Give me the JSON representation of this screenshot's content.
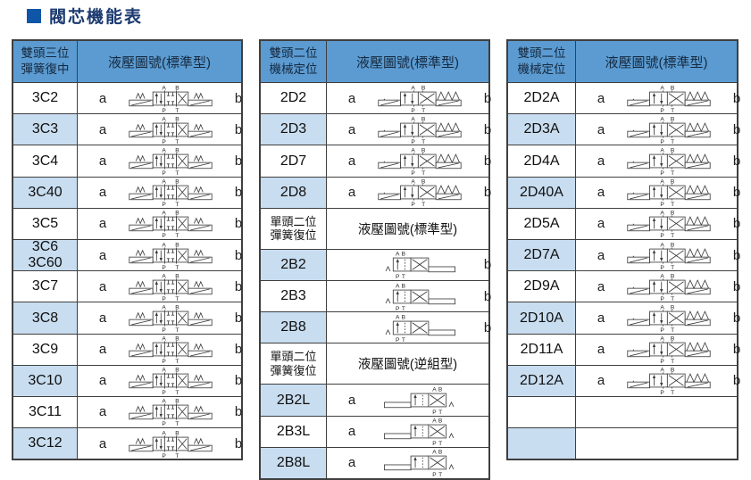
{
  "title": "閥芯機能表",
  "title_bullet_icon": "blue-square-bullet",
  "colors": {
    "header_bg": "#5B9BD1",
    "header_text": "#16293f",
    "row_shade": "#C8DDF0",
    "border": "#3f3f3f",
    "title_text": "#1b3a70",
    "title_bullet": "#0f55a8",
    "symbol_stroke": "#3a3a3a"
  },
  "tables": [
    {
      "sections": [
        {
          "style": "primary",
          "header": {
            "left": "雙頭三位\n彈簧復中",
            "right": "液壓圖號(標準型)"
          },
          "rows": [
            {
              "code": "3C2",
              "a": "a",
              "b": "b",
              "shaded": false,
              "sym": "3pos-spring-center"
            },
            {
              "code": "3C3",
              "a": "a",
              "b": "b",
              "shaded": true,
              "sym": "3pos-spring-center"
            },
            {
              "code": "3C4",
              "a": "a",
              "b": "b",
              "shaded": false,
              "sym": "3pos-spring-center"
            },
            {
              "code": "3C40",
              "a": "a",
              "b": "b",
              "shaded": true,
              "sym": "3pos-spring-center"
            },
            {
              "code": "3C5",
              "a": "a",
              "b": "b",
              "shaded": false,
              "sym": "3pos-spring-center"
            },
            {
              "code": "3C6\n3C60",
              "a": "a",
              "b": "b",
              "shaded": true,
              "sym": "3pos-spring-center"
            },
            {
              "code": "3C7",
              "a": "a",
              "b": "b",
              "shaded": false,
              "sym": "3pos-spring-center"
            },
            {
              "code": "3C8",
              "a": "a",
              "b": "b",
              "shaded": true,
              "sym": "3pos-spring-center"
            },
            {
              "code": "3C9",
              "a": "a",
              "b": "b",
              "shaded": false,
              "sym": "3pos-spring-center"
            },
            {
              "code": "3C10",
              "a": "a",
              "b": "b",
              "shaded": true,
              "sym": "3pos-spring-center"
            },
            {
              "code": "3C11",
              "a": "a",
              "b": "b",
              "shaded": false,
              "sym": "3pos-spring-center"
            },
            {
              "code": "3C12",
              "a": "a",
              "b": "b",
              "shaded": true,
              "sym": "3pos-spring-center"
            }
          ]
        }
      ]
    },
    {
      "sections": [
        {
          "style": "primary",
          "header": {
            "left": "雙頭二位\n機械定位",
            "right": "液壓圖號(標準型)"
          },
          "rows": [
            {
              "code": "2D2",
              "a": "a",
              "b": "b",
              "shaded": false,
              "sym": "2pos-detent"
            },
            {
              "code": "2D3",
              "a": "a",
              "b": "b",
              "shaded": true,
              "sym": "2pos-detent"
            },
            {
              "code": "2D7",
              "a": "a",
              "b": "b",
              "shaded": false,
              "sym": "2pos-detent"
            },
            {
              "code": "2D8",
              "a": "a",
              "b": "b",
              "shaded": true,
              "sym": "2pos-detent"
            }
          ]
        },
        {
          "style": "sub",
          "header": {
            "left": "單頭二位\n彈簧復位",
            "right": "液壓圖號(標準型)"
          },
          "rows": [
            {
              "code": "2B2",
              "a": "",
              "b": "b",
              "shaded": true,
              "sym": "2pos-spring-return"
            },
            {
              "code": "2B3",
              "a": "",
              "b": "b",
              "shaded": false,
              "sym": "2pos-spring-return"
            },
            {
              "code": "2B8",
              "a": "",
              "b": "b",
              "shaded": true,
              "sym": "2pos-spring-return"
            }
          ]
        },
        {
          "style": "sub",
          "header": {
            "left": "單頭二位\n彈簧復位",
            "right": "液壓圖號(逆組型)"
          },
          "rows": [
            {
              "code": "2B2L",
              "a": "a",
              "b": "",
              "shaded": true,
              "sym": "2pos-spring-return-L"
            },
            {
              "code": "2B3L",
              "a": "a",
              "b": "",
              "shaded": false,
              "sym": "2pos-spring-return-L"
            },
            {
              "code": "2B8L",
              "a": "a",
              "b": "",
              "shaded": true,
              "sym": "2pos-spring-return-L"
            }
          ]
        }
      ]
    },
    {
      "sections": [
        {
          "style": "primary",
          "header": {
            "left": "雙頭二位\n機械定位",
            "right": "液壓圖號(標準型)"
          },
          "rows": [
            {
              "code": "2D2A",
              "a": "a",
              "b": "b",
              "shaded": false,
              "sym": "2pos-detent"
            },
            {
              "code": "2D3A",
              "a": "a",
              "b": "b",
              "shaded": true,
              "sym": "2pos-detent"
            },
            {
              "code": "2D4A",
              "a": "a",
              "b": "b",
              "shaded": false,
              "sym": "2pos-detent"
            },
            {
              "code": "2D40A",
              "a": "a",
              "b": "b",
              "shaded": true,
              "sym": "2pos-detent"
            },
            {
              "code": "2D5A",
              "a": "a",
              "b": "b",
              "shaded": false,
              "sym": "2pos-detent"
            },
            {
              "code": "2D7A",
              "a": "a",
              "b": "b",
              "shaded": true,
              "sym": "2pos-detent"
            },
            {
              "code": "2D9A",
              "a": "a",
              "b": "b",
              "shaded": false,
              "sym": "2pos-detent"
            },
            {
              "code": "2D10A",
              "a": "a",
              "b": "b",
              "shaded": true,
              "sym": "2pos-detent"
            },
            {
              "code": "2D11A",
              "a": "a",
              "b": "b",
              "shaded": false,
              "sym": "2pos-detent"
            },
            {
              "code": "2D12A",
              "a": "a",
              "b": "b",
              "shaded": true,
              "sym": "2pos-detent"
            },
            {
              "code": "",
              "a": "",
              "b": "",
              "shaded": false,
              "sym": "none"
            },
            {
              "code": "",
              "a": "",
              "b": "",
              "shaded": true,
              "sym": "none"
            }
          ]
        }
      ]
    }
  ]
}
